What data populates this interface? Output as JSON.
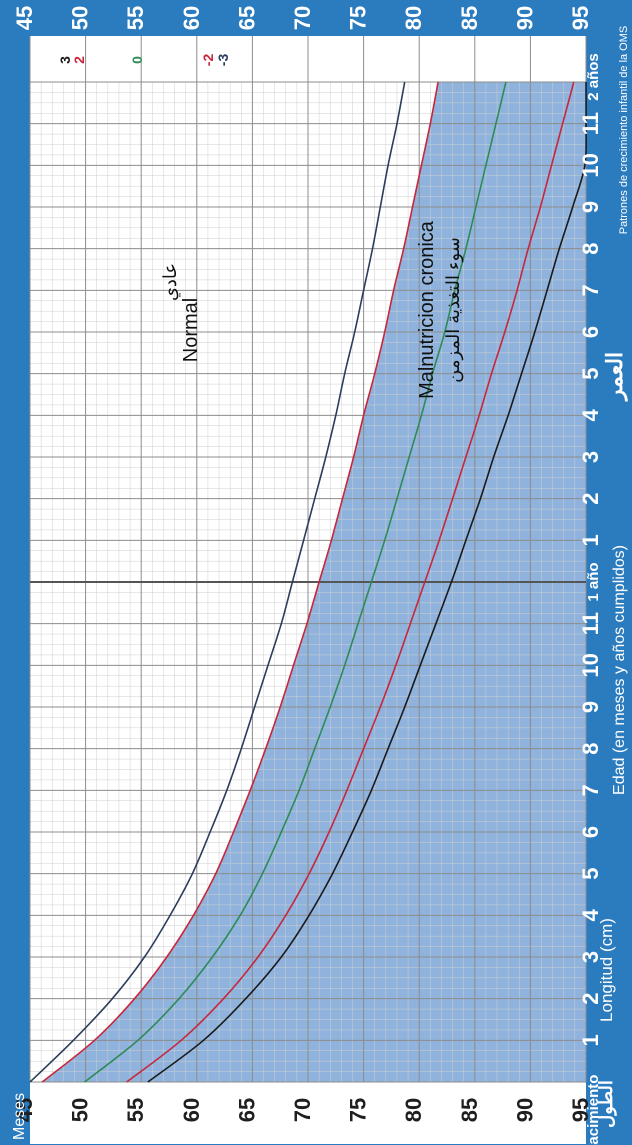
{
  "chart_data": {
    "type": "line",
    "title": "",
    "source": "Patrones de crecimiento infantil de la OMS",
    "xlabel": "Edad (en meses y años cumplidos)",
    "xlabel_ar": "العمر",
    "ylabel": "Longitud (cm)",
    "ylabel_ar": "الطول",
    "months_label": "Meses",
    "xlim": [
      0,
      24
    ],
    "ylim": [
      45,
      95
    ],
    "grid": true,
    "legend": "right-edge labels",
    "x_ticks": [
      {
        "value": 0,
        "label": "Nacimiento"
      },
      {
        "value": 1,
        "label": "1"
      },
      {
        "value": 2,
        "label": "2"
      },
      {
        "value": 3,
        "label": "3"
      },
      {
        "value": 4,
        "label": "4"
      },
      {
        "value": 5,
        "label": "5"
      },
      {
        "value": 6,
        "label": "6"
      },
      {
        "value": 7,
        "label": "7"
      },
      {
        "value": 8,
        "label": "8"
      },
      {
        "value": 9,
        "label": "9"
      },
      {
        "value": 10,
        "label": "10"
      },
      {
        "value": 11,
        "label": "11"
      },
      {
        "value": 12,
        "label": "1 año"
      },
      {
        "value": 13,
        "label": "1"
      },
      {
        "value": 14,
        "label": "2"
      },
      {
        "value": 15,
        "label": "3"
      },
      {
        "value": 16,
        "label": "4"
      },
      {
        "value": 17,
        "label": "5"
      },
      {
        "value": 18,
        "label": "6"
      },
      {
        "value": 19,
        "label": "7"
      },
      {
        "value": 20,
        "label": "8"
      },
      {
        "value": 21,
        "label": "9"
      },
      {
        "value": 22,
        "label": "10"
      },
      {
        "value": 23,
        "label": "11"
      },
      {
        "value": 24,
        "label": "2 años"
      }
    ],
    "y_ticks": [
      45,
      50,
      55,
      60,
      65,
      70,
      75,
      80,
      85,
      90,
      95
    ],
    "x": [
      0,
      1,
      2,
      3,
      4,
      5,
      6,
      7,
      8,
      9,
      10,
      11,
      12,
      13,
      14,
      15,
      16,
      17,
      18,
      19,
      20,
      21,
      22,
      23,
      24
    ],
    "series": [
      {
        "name": "3",
        "color": "#1a1a1a",
        "values": [
          55.6,
          60.6,
          64.4,
          67.6,
          70.1,
          72.2,
          74.0,
          75.7,
          77.2,
          78.7,
          80.1,
          81.5,
          82.9,
          84.2,
          85.5,
          86.7,
          88.0,
          89.2,
          90.4,
          91.5,
          92.6,
          93.8,
          94.9,
          95.9,
          97.0
        ]
      },
      {
        "name": "2",
        "color": "#c8263a",
        "values": [
          53.7,
          58.6,
          62.4,
          65.5,
          68.0,
          70.1,
          71.9,
          73.5,
          75.0,
          76.5,
          77.9,
          79.2,
          80.5,
          81.8,
          83.0,
          84.2,
          85.4,
          86.5,
          87.7,
          88.8,
          89.8,
          90.9,
          91.9,
          92.9,
          93.9
        ]
      },
      {
        "name": "0",
        "color": "#2e8b57",
        "values": [
          49.9,
          54.7,
          58.4,
          61.4,
          63.9,
          65.9,
          67.6,
          69.2,
          70.6,
          72.0,
          73.3,
          74.5,
          75.7,
          76.9,
          78.0,
          79.1,
          80.2,
          81.2,
          82.3,
          83.2,
          84.2,
          85.1,
          86.0,
          86.9,
          87.8
        ]
      },
      {
        "name": "-2",
        "color": "#c8263a",
        "values": [
          46.1,
          50.8,
          54.4,
          57.3,
          59.7,
          61.7,
          63.3,
          64.8,
          66.2,
          67.5,
          68.7,
          69.9,
          71.0,
          72.1,
          73.1,
          74.1,
          75.0,
          76.0,
          76.9,
          77.7,
          78.6,
          79.4,
          80.2,
          81.0,
          81.7
        ]
      },
      {
        "name": "-3",
        "color": "#2a3d5c",
        "values": [
          44.2,
          48.9,
          52.4,
          55.3,
          57.6,
          59.6,
          61.2,
          62.7,
          64.0,
          65.2,
          66.4,
          67.6,
          68.6,
          69.6,
          70.6,
          71.6,
          72.5,
          73.3,
          74.2,
          75.0,
          75.8,
          76.5,
          77.2,
          78.0,
          78.7
        ]
      }
    ],
    "annotations": [
      {
        "text": "Normal",
        "text_ar": "عادي"
      },
      {
        "text": "Malnutricion cronica",
        "text_ar": "سوء التغذية المزمن"
      }
    ],
    "colors": {
      "frame": "#2b7bbf",
      "shade": "#8fb3dd",
      "grid": "#b0b0b0"
    }
  }
}
